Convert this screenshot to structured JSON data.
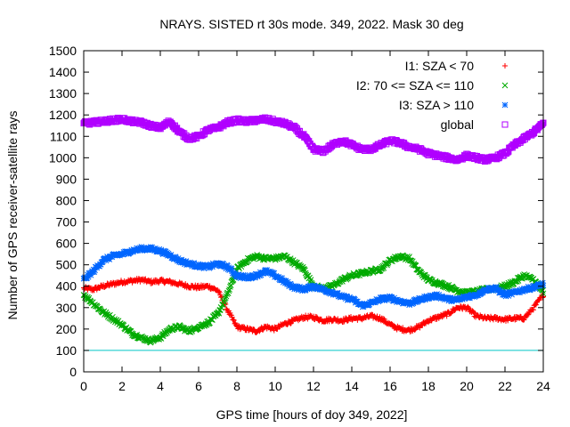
{
  "chart_data": {
    "type": "scatter",
    "title": "NRAYS. SISTED rt 30s mode. 349, 2022. Mask 30 deg",
    "xlabel": "GPS time [hours of doy 349, 2022]",
    "ylabel": "Number of GPS receiver-satellite rays",
    "xlim": [
      0,
      24
    ],
    "ylim": [
      0,
      1500
    ],
    "xticks": [
      "0",
      "2",
      "4",
      "6",
      "8",
      "10",
      "12",
      "14",
      "16",
      "18",
      "20",
      "22",
      "24"
    ],
    "yticks": [
      "0",
      "100",
      "200",
      "300",
      "400",
      "500",
      "600",
      "700",
      "800",
      "900",
      "1000",
      "1100",
      "1200",
      "1300",
      "1400",
      "1500"
    ],
    "reference_line": {
      "y": 100,
      "color": "#00c8c8"
    },
    "legend_position": "top-right",
    "series": [
      {
        "name": "I1: SZA < 70",
        "marker": "plus",
        "color": "#ff0000",
        "x": [
          0,
          0.5,
          1,
          1.5,
          2,
          2.5,
          3,
          3.5,
          4,
          4.5,
          5,
          5.5,
          6,
          6.5,
          7,
          7.5,
          8,
          8.5,
          9,
          9.5,
          10,
          10.5,
          11,
          11.5,
          12,
          12.5,
          13,
          13.5,
          14,
          14.5,
          15,
          15.5,
          16,
          16.5,
          17,
          17.5,
          18,
          18.5,
          19,
          19.5,
          20,
          20.5,
          21,
          21.5,
          22,
          22.5,
          23,
          23.5,
          24
        ],
        "y": [
          390,
          385,
          400,
          410,
          420,
          425,
          430,
          420,
          425,
          420,
          410,
          400,
          395,
          400,
          380,
          290,
          210,
          200,
          190,
          210,
          200,
          225,
          240,
          255,
          255,
          240,
          245,
          240,
          250,
          250,
          260,
          250,
          220,
          200,
          195,
          210,
          240,
          255,
          270,
          300,
          300,
          260,
          250,
          250,
          245,
          250,
          250,
          300,
          360
        ]
      },
      {
        "name": "I2: 70 <= SZA <= 110",
        "marker": "cross",
        "color": "#00aa00",
        "x": [
          0,
          0.5,
          1,
          1.5,
          2,
          2.5,
          3,
          3.5,
          4,
          4.5,
          5,
          5.5,
          6,
          6.5,
          7,
          7.5,
          8,
          8.5,
          9,
          9.5,
          10,
          10.5,
          11,
          11.5,
          12,
          12.5,
          13,
          13.5,
          14,
          14.5,
          15,
          15.5,
          16,
          16.5,
          17,
          17.5,
          18,
          18.5,
          19,
          19.5,
          20,
          20.5,
          21,
          21.5,
          22,
          22.5,
          23,
          23.5,
          24
        ],
        "y": [
          360,
          320,
          280,
          250,
          220,
          180,
          160,
          145,
          160,
          200,
          210,
          190,
          210,
          230,
          270,
          360,
          480,
          520,
          540,
          530,
          530,
          540,
          510,
          480,
          400,
          390,
          400,
          430,
          450,
          460,
          470,
          480,
          520,
          540,
          530,
          470,
          430,
          415,
          400,
          380,
          370,
          375,
          385,
          390,
          400,
          420,
          450,
          430,
          370
        ]
      },
      {
        "name": "I3: SZA > 110",
        "marker": "star",
        "color": "#0066ff",
        "x": [
          0,
          0.5,
          1,
          1.5,
          2,
          2.5,
          3,
          3.5,
          4,
          4.5,
          5,
          5.5,
          6,
          6.5,
          7,
          7.5,
          8,
          8.5,
          9,
          9.5,
          10,
          10.5,
          11,
          11.5,
          12,
          12.5,
          13,
          13.5,
          14,
          14.5,
          15,
          15.5,
          16,
          16.5,
          17,
          17.5,
          18,
          18.5,
          19,
          19.5,
          20,
          20.5,
          21,
          21.5,
          22,
          22.5,
          23,
          23.5,
          24
        ],
        "y": [
          430,
          470,
          520,
          540,
          550,
          565,
          575,
          575,
          565,
          545,
          520,
          505,
          495,
          490,
          505,
          490,
          450,
          440,
          450,
          470,
          450,
          420,
          395,
          385,
          400,
          385,
          370,
          350,
          340,
          310,
          320,
          340,
          345,
          330,
          320,
          335,
          350,
          355,
          340,
          335,
          350,
          360,
          385,
          390,
          360,
          370,
          385,
          395,
          410
        ]
      },
      {
        "name": "global",
        "marker": "square",
        "color": "#b000ff",
        "x": [
          0,
          0.5,
          1,
          1.5,
          2,
          2.5,
          3,
          3.5,
          4,
          4.5,
          5,
          5.5,
          6,
          6.5,
          7,
          7.5,
          8,
          8.5,
          9,
          9.5,
          10,
          10.5,
          11,
          11.5,
          12,
          12.5,
          13,
          13.5,
          14,
          14.5,
          15,
          15.5,
          16,
          16.5,
          17,
          17.5,
          18,
          18.5,
          19,
          19.5,
          20,
          20.5,
          21,
          21.5,
          22,
          22.5,
          23,
          23.5,
          24
        ],
        "y": [
          1160,
          1165,
          1170,
          1175,
          1180,
          1170,
          1165,
          1150,
          1140,
          1170,
          1120,
          1090,
          1100,
          1130,
          1140,
          1165,
          1175,
          1170,
          1175,
          1180,
          1170,
          1160,
          1140,
          1100,
          1040,
          1030,
          1060,
          1080,
          1060,
          1040,
          1040,
          1060,
          1080,
          1070,
          1050,
          1040,
          1020,
          1010,
          1000,
          990,
          1010,
          1000,
          990,
          1000,
          1020,
          1060,
          1090,
          1120,
          1160
        ]
      }
    ]
  }
}
